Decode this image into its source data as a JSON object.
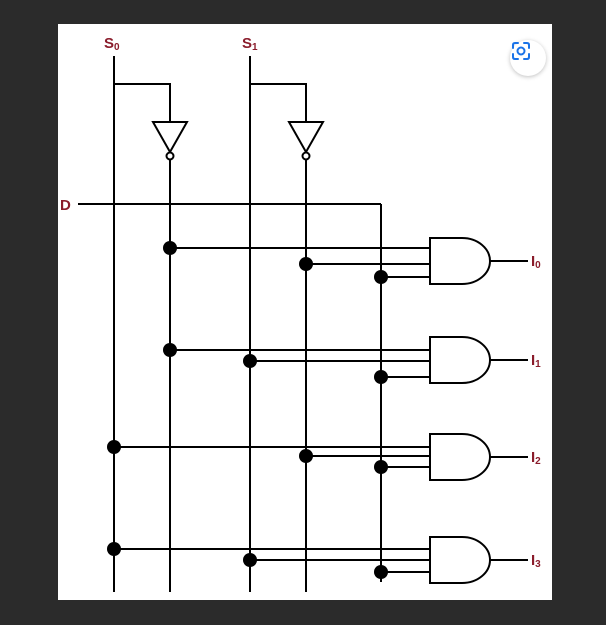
{
  "diagram": {
    "inputs": {
      "s0": {
        "main": "S",
        "sub": "0"
      },
      "s1": {
        "main": "S",
        "sub": "1"
      },
      "d": "D"
    },
    "outputs": [
      {
        "main": "I",
        "sub": "0"
      },
      {
        "main": "I",
        "sub": "1"
      },
      {
        "main": "I",
        "sub": "2"
      },
      {
        "main": "I",
        "sub": "3"
      }
    ],
    "label_color": "#8a1c2b",
    "wire_color": "#000000"
  },
  "toolbar": {
    "lens_icon": "visual-search-icon"
  }
}
